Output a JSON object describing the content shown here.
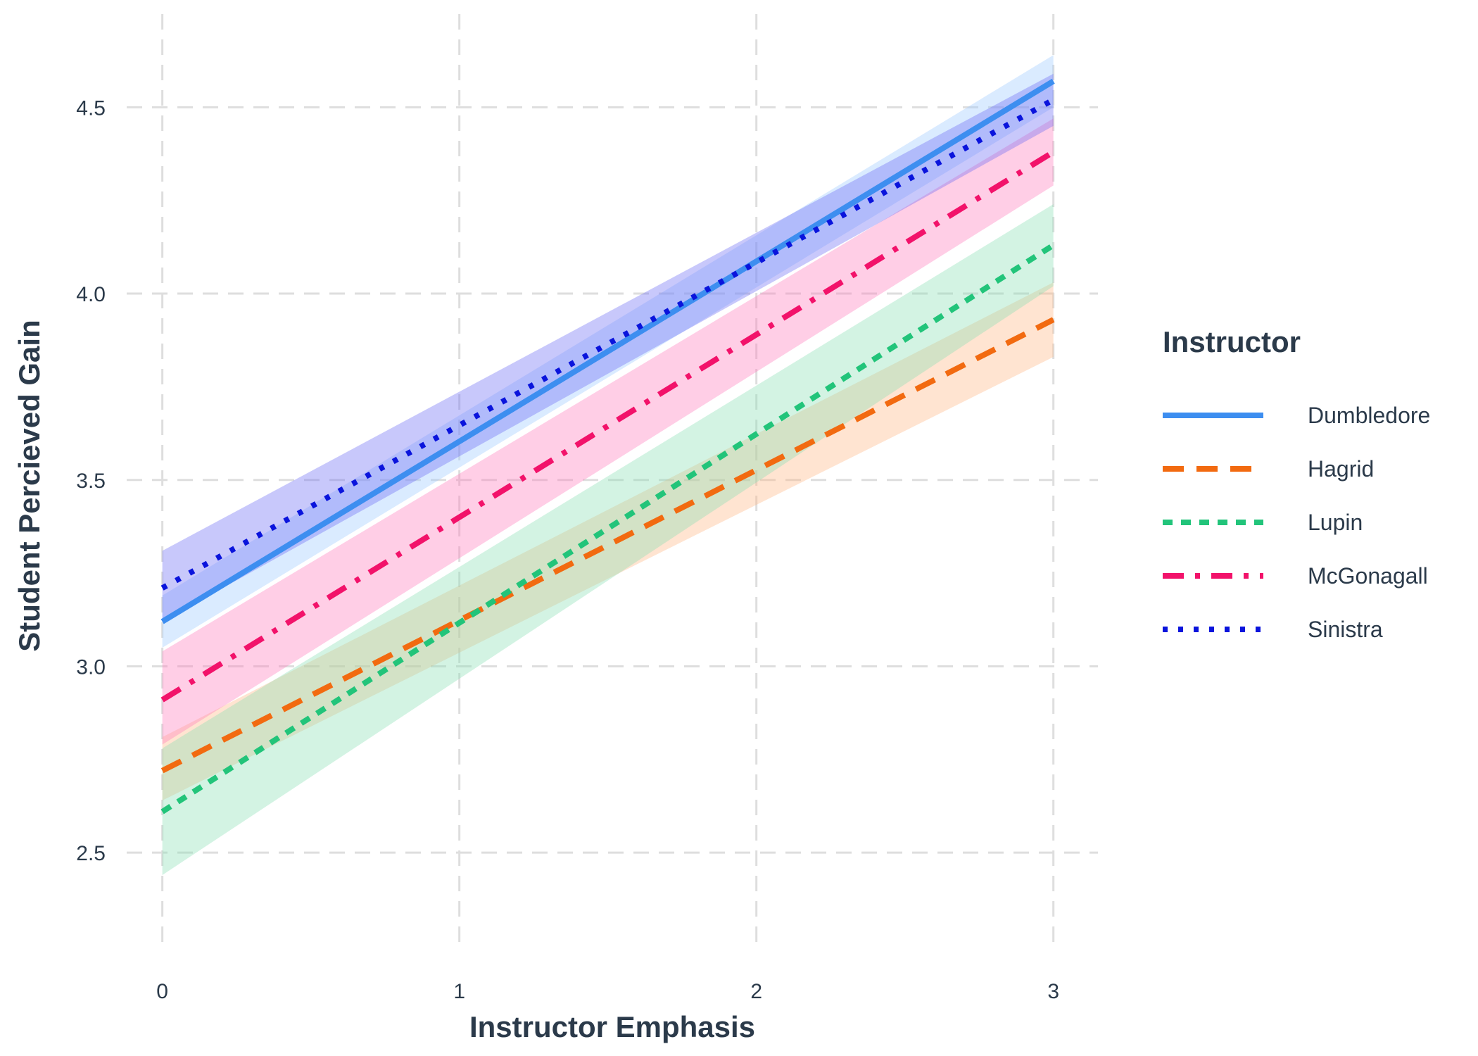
{
  "chart_data": {
    "type": "line",
    "xlabel": "Instructor Emphasis",
    "ylabel": "Student Percieved Gain",
    "xlim": [
      -0.12,
      3.15
    ],
    "ylim": [
      2.2,
      4.75
    ],
    "x_ticks": [
      0,
      1,
      2,
      3
    ],
    "y_ticks": [
      2.5,
      3.0,
      3.5,
      4.0,
      4.5
    ],
    "x_tick_labels": [
      "0",
      "1",
      "2",
      "3"
    ],
    "y_tick_labels": [
      "2.5",
      "3.0",
      "3.5",
      "4.0",
      "4.5"
    ],
    "grid": true,
    "legend": {
      "title": "Instructor",
      "position": "right"
    },
    "series": [
      {
        "name": "Dumbledore",
        "color": "#3d8ef0",
        "band_color": "#9ecbff",
        "dash": "solid",
        "x": [
          0,
          3
        ],
        "y": [
          3.12,
          4.57
        ],
        "lower": [
          3.05,
          4.5
        ],
        "upper": [
          3.19,
          4.64
        ]
      },
      {
        "name": "Hagrid",
        "color": "#f26a10",
        "band_color": "#ffb787",
        "dash": "dashed",
        "x": [
          0,
          3
        ],
        "y": [
          2.72,
          3.93
        ],
        "lower": [
          2.64,
          3.83
        ],
        "upper": [
          2.81,
          4.03
        ]
      },
      {
        "name": "Lupin",
        "color": "#22c47a",
        "band_color": "#8be0b6",
        "dash": "short-dashed",
        "x": [
          0,
          3
        ],
        "y": [
          2.61,
          4.13
        ],
        "lower": [
          2.44,
          4.02
        ],
        "upper": [
          2.78,
          4.24
        ]
      },
      {
        "name": "McGonagall",
        "color": "#f2126a",
        "band_color": "#ff7fbd",
        "dash": "dot-dash",
        "x": [
          0,
          3
        ],
        "y": [
          2.91,
          4.38
        ],
        "lower": [
          2.79,
          4.29
        ],
        "upper": [
          3.04,
          4.47
        ]
      },
      {
        "name": "Sinistra",
        "color": "#0a14dc",
        "band_color": "#6e6ef5",
        "dash": "dotted",
        "x": [
          0,
          3
        ],
        "y": [
          3.21,
          4.52
        ],
        "lower": [
          3.12,
          4.45
        ],
        "upper": [
          3.31,
          4.59
        ]
      }
    ]
  }
}
